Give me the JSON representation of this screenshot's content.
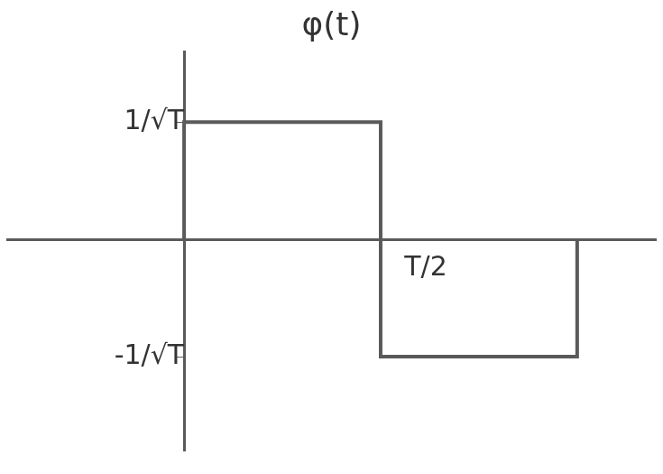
{
  "chart_data": {
    "type": "line",
    "title": "φ(t)",
    "x": [
      0,
      0,
      0.5,
      0.5,
      1,
      1
    ],
    "values": [
      0,
      1,
      1,
      -1,
      -1,
      0
    ],
    "color": "#5a5a5a",
    "marker": "none",
    "line_style": "solid",
    "xlim": [
      -0.45,
      1.2
    ],
    "ylim": [
      -1.8,
      1.6
    ],
    "xticks": [
      {
        "value": 0.5,
        "label": "T/2"
      }
    ],
    "yticks": [
      {
        "value": 1,
        "label": "1/√T"
      },
      {
        "value": -1,
        "label": "-1/√T"
      }
    ],
    "grid": false
  }
}
